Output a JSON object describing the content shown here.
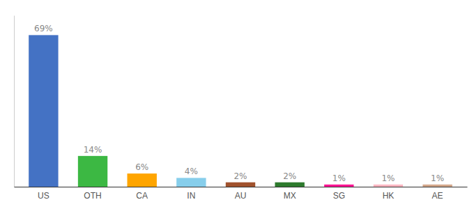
{
  "chart_data": {
    "type": "bar",
    "categories": [
      "US",
      "OTH",
      "CA",
      "IN",
      "AU",
      "MX",
      "SG",
      "HK",
      "AE"
    ],
    "values": [
      69,
      14,
      6,
      4,
      2,
      2,
      1,
      1,
      1
    ],
    "value_labels": [
      "69%",
      "14%",
      "6%",
      "4%",
      "2%",
      "2%",
      "1%",
      "1%",
      "1%"
    ],
    "colors": [
      "#4472C4",
      "#3CB843",
      "#FFA500",
      "#87CEEB",
      "#A0522D",
      "#2D7A2D",
      "#FF1493",
      "#FFB6C1",
      "#D2A68A"
    ],
    "ylim": [
      0,
      78
    ],
    "data_labels": true,
    "tick_labels": "x",
    "grid": false
  }
}
